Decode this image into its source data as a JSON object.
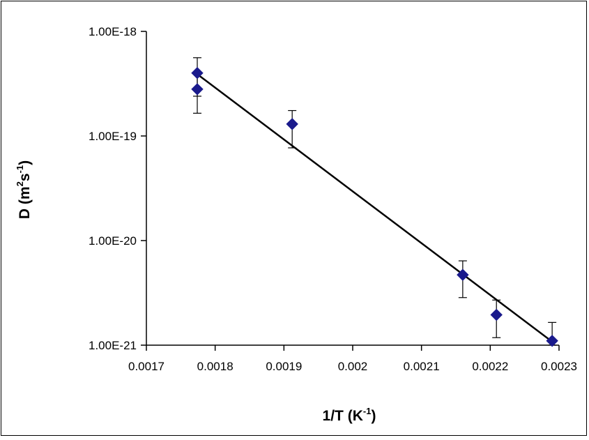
{
  "chart_data": {
    "type": "scatter",
    "xlabel": "1/T (K",
    "xlabel_sup": "-1",
    "xlabel_end": ")",
    "ylabel": "D (m",
    "ylabel_sup1": "2",
    "ylabel_mid": "s",
    "ylabel_sup2": "-1",
    "ylabel_end": ")",
    "xlim": [
      0.0017,
      0.0023
    ],
    "ylim": [
      1e-21,
      1e-18
    ],
    "yscale": "log",
    "grid": false,
    "legend": "none",
    "x_ticks": [
      "0.0017",
      "0.0018",
      "0.0019",
      "0.002",
      "0.0021",
      "0.0022",
      "0.0023"
    ],
    "x_tick_values": [
      0.0017,
      0.0018,
      0.0019,
      0.002,
      0.0021,
      0.0022,
      0.0023
    ],
    "y_ticks": [
      "1.00E-18",
      "1.00E-19",
      "1.00E-20",
      "1.00E-21"
    ],
    "y_tick_values": [
      1e-18,
      1e-19,
      1e-20,
      1e-21
    ],
    "series": [
      {
        "marker": "diamond",
        "color": "#1a1a8c",
        "points": [
          {
            "x": 0.001774,
            "y": 4e-19,
            "err_high": 5.6e-19,
            "err_low": 2.4e-19
          },
          {
            "x": 0.001774,
            "y": 2.8e-19,
            "err_high": 3.9e-19,
            "err_low": 1.65e-19
          },
          {
            "x": 0.001912,
            "y": 1.3e-19,
            "err_high": 1.75e-19,
            "err_low": 7.7e-20
          },
          {
            "x": 0.00216,
            "y": 4.7e-21,
            "err_high": 6.4e-21,
            "err_low": 2.85e-21
          },
          {
            "x": 0.002209,
            "y": 1.95e-21,
            "err_high": 2.7e-21,
            "err_low": 1.18e-21
          },
          {
            "x": 0.00229,
            "y": 1.1e-21,
            "err_high": 1.65e-21,
            "err_low": 1e-21
          }
        ]
      }
    ],
    "trendline": {
      "color": "#000000",
      "start": {
        "x": 0.001774,
        "y": 3.9e-19
      },
      "end": {
        "x": 0.00229,
        "y": 1.08e-21
      }
    }
  }
}
